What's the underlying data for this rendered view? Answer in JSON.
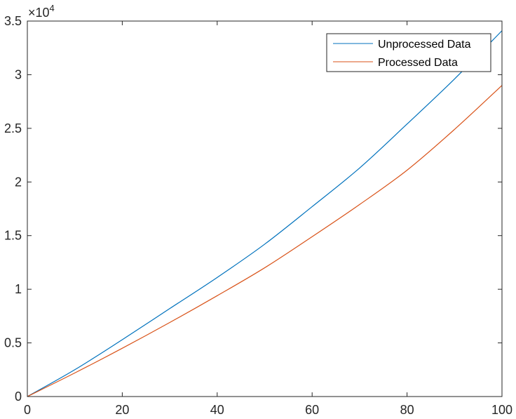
{
  "chart_data": {
    "type": "line",
    "title": "",
    "xlabel": "",
    "ylabel": "",
    "xlim": [
      0,
      100
    ],
    "ylim": [
      0,
      35000
    ],
    "x_ticks": [
      0,
      20,
      40,
      60,
      80,
      100
    ],
    "x_tick_labels": [
      "0",
      "20",
      "40",
      "60",
      "80",
      "100"
    ],
    "y_ticks": [
      0,
      5000,
      10000,
      15000,
      20000,
      25000,
      30000,
      35000
    ],
    "y_tick_labels": [
      "0",
      "0.5",
      "1",
      "1.5",
      "2",
      "2.5",
      "3",
      "3.5"
    ],
    "y_exponent": {
      "base": "×10",
      "power": "4"
    },
    "grid": false,
    "legend_position": "top-right",
    "x": [
      0,
      10,
      20,
      30,
      40,
      50,
      60,
      70,
      80,
      90,
      100
    ],
    "series": [
      {
        "name": "Unprocessed Data",
        "color": "#0072BD",
        "values": [
          0,
          2500,
          5300,
          8200,
          11100,
          14200,
          17700,
          21300,
          25400,
          29600,
          34100
        ]
      },
      {
        "name": "Processed Data",
        "color": "#D95319",
        "values": [
          0,
          2200,
          4500,
          6900,
          9400,
          12000,
          14900,
          17900,
          21100,
          24900,
          29000
        ]
      }
    ]
  }
}
